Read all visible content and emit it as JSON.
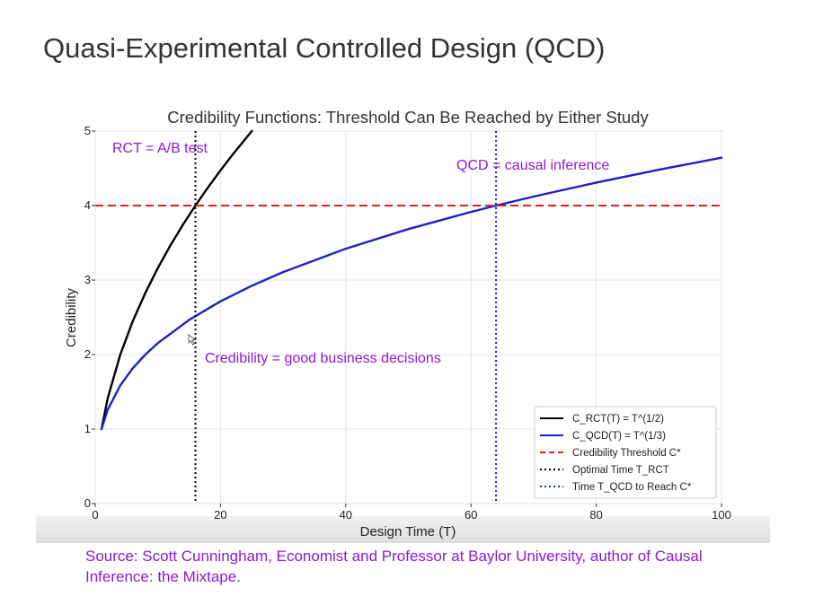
{
  "slide": {
    "title": "Quasi-Experimental Controlled Design (QCD)",
    "source": "Source: Scott Cunningham, Economist and Professor at Baylor University, author of Causal Inference: the Mixtape."
  },
  "chart_data": {
    "type": "line",
    "title": "Credibility Functions: Threshold Can Be Reached by Either Study",
    "xlabel": "Design Time (T)",
    "ylabel": "Credibility",
    "xlim": [
      0,
      100
    ],
    "ylim": [
      0,
      5
    ],
    "xticks": [
      0,
      20,
      40,
      60,
      80,
      100
    ],
    "yticks": [
      0,
      1,
      2,
      3,
      4,
      5
    ],
    "grid": true,
    "legend_position": "bottom-right",
    "series": [
      {
        "name": "C_RCT(T) = T^(1/2)",
        "color": "#000000",
        "style": "solid",
        "x": [
          1,
          2,
          4,
          6,
          8,
          10,
          12,
          14,
          16,
          18,
          20,
          22,
          25
        ],
        "y": [
          1.0,
          1.414,
          2.0,
          2.449,
          2.828,
          3.162,
          3.464,
          3.742,
          4.0,
          4.243,
          4.472,
          4.69,
          5.0
        ]
      },
      {
        "name": "C_QCD(T) = T^(1/3)",
        "color": "#1f1fc8",
        "style": "solid",
        "x": [
          1,
          2,
          4,
          6,
          8,
          10,
          15,
          20,
          25,
          30,
          40,
          50,
          60,
          64,
          70,
          80,
          90,
          100
        ],
        "y": [
          1.0,
          1.26,
          1.587,
          1.817,
          2.0,
          2.154,
          2.466,
          2.714,
          2.924,
          3.107,
          3.42,
          3.684,
          3.915,
          4.0,
          4.121,
          4.309,
          4.481,
          4.642
        ]
      }
    ],
    "reference_lines": [
      {
        "name": "Credibility Threshold C*",
        "orientation": "horizontal",
        "value": 4,
        "color": "#e02020",
        "style": "dashed"
      },
      {
        "name": "Optimal Time T_RCT",
        "orientation": "vertical",
        "value": 16,
        "color": "#000000",
        "style": "dotted"
      },
      {
        "name": "Time T_QCD to Reach C*",
        "orientation": "vertical",
        "value": 64,
        "color": "#1f1fc8",
        "style": "dotted"
      }
    ],
    "annotations": [
      {
        "text": "RCT = A/B test",
        "x": 2.5,
        "y": 4.75,
        "color": "#8a1ad6"
      },
      {
        "text": "QCD = causal inference",
        "x": 58.5,
        "y": 4.53,
        "color": "#8a1ad6"
      },
      {
        "text": "Credibility = good business decisions",
        "x": 17.7,
        "y": 1.95,
        "color": "#8a1ad6"
      }
    ]
  }
}
